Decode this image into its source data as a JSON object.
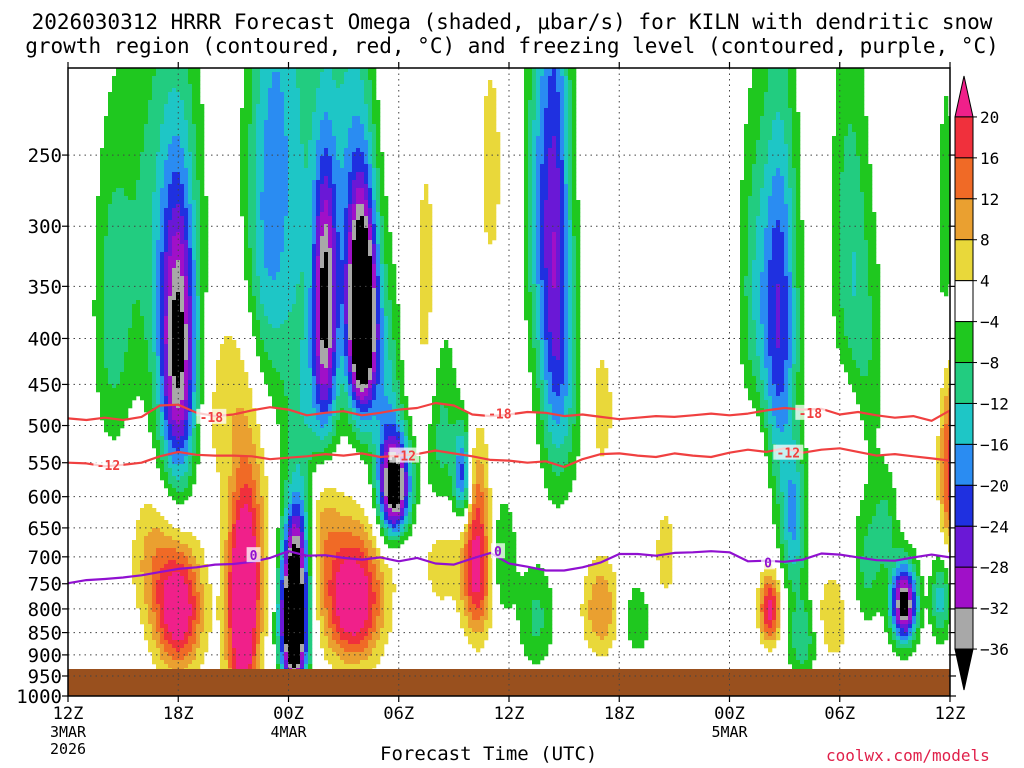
{
  "chart_data": {
    "type": "heatmap",
    "title_line1": "2026030312 HRRR Forecast Omega (shaded, μbar/s) for KILN with dendritic snow",
    "title_line2": "growth region (contoured, red, °C) and freezing level (contoured, purple, °C)",
    "xlabel": "Forecast Time (UTC)",
    "ylabel": "",
    "y_axis": {
      "scale": "log-pressure",
      "ylim_hpa": [
        1000,
        200
      ],
      "ticks": [
        250,
        300,
        350,
        400,
        450,
        500,
        550,
        600,
        650,
        700,
        750,
        800,
        850,
        900,
        950,
        1000
      ]
    },
    "x_axis": {
      "xlim_hours": [
        0,
        48
      ],
      "ticks": [
        {
          "hour": 0,
          "label": "12Z",
          "sub1": "3MAR",
          "sub2": "2026"
        },
        {
          "hour": 6,
          "label": "18Z",
          "sub1": "",
          "sub2": ""
        },
        {
          "hour": 12,
          "label": "00Z",
          "sub1": "4MAR",
          "sub2": ""
        },
        {
          "hour": 18,
          "label": "06Z",
          "sub1": "",
          "sub2": ""
        },
        {
          "hour": 24,
          "label": "12Z",
          "sub1": "",
          "sub2": ""
        },
        {
          "hour": 30,
          "label": "18Z",
          "sub1": "",
          "sub2": ""
        },
        {
          "hour": 36,
          "label": "00Z",
          "sub1": "5MAR",
          "sub2": ""
        },
        {
          "hour": 42,
          "label": "06Z",
          "sub1": "",
          "sub2": ""
        },
        {
          "hour": 48,
          "label": "12Z",
          "sub1": "",
          "sub2": ""
        }
      ]
    },
    "grid": true,
    "colorbar": {
      "labels": [
        "20",
        "16",
        "12",
        "8",
        "4",
        "−4",
        "−8",
        "−12",
        "−16",
        "−20",
        "−24",
        "−28",
        "−32",
        "−36"
      ],
      "bins": [
        {
          "min": 20,
          "max": 24,
          "color": "#f0208a"
        },
        {
          "min": 16,
          "max": 20,
          "color": "#f0303c"
        },
        {
          "min": 12,
          "max": 16,
          "color": "#f06a26"
        },
        {
          "min": 8,
          "max": 12,
          "color": "#eaa030"
        },
        {
          "min": 4,
          "max": 8,
          "color": "#e9d83a"
        },
        {
          "min": -4,
          "max": 4,
          "color": "#ffffff"
        },
        {
          "min": -8,
          "max": -4,
          "color": "#1fc81f"
        },
        {
          "min": -12,
          "max": -8,
          "color": "#22cc80"
        },
        {
          "min": -16,
          "max": -12,
          "color": "#1ec6c6"
        },
        {
          "min": -20,
          "max": -16,
          "color": "#2a8cf2"
        },
        {
          "min": -24,
          "max": -20,
          "color": "#1f30e0"
        },
        {
          "min": -28,
          "max": -24,
          "color": "#6a18d6"
        },
        {
          "min": -32,
          "max": -28,
          "color": "#a010c8"
        },
        {
          "min": -36,
          "max": -32,
          "color": "#a8a8a8"
        },
        {
          "min": -40,
          "max": -36,
          "color": "#000000"
        }
      ]
    },
    "omega_features": [
      {
        "t": 6.0,
        "p": 420,
        "amp": -34,
        "st": 0.7,
        "sp": 110
      },
      {
        "t": 5.0,
        "p": 300,
        "amp": -10,
        "st": 1.6,
        "sp": 120
      },
      {
        "t": 2.4,
        "p": 380,
        "amp": -9,
        "st": 0.7,
        "sp": 100
      },
      {
        "t": 9.5,
        "p": 560,
        "amp": -9,
        "st": 0.7,
        "sp": 90
      },
      {
        "t": 10.5,
        "p": 330,
        "amp": -7,
        "st": 0.8,
        "sp": 90
      },
      {
        "t": 11.2,
        "p": 240,
        "amp": -12,
        "st": 1.0,
        "sp": 140
      },
      {
        "t": 13.0,
        "p": 260,
        "amp": -8,
        "st": 1.3,
        "sp": 120
      },
      {
        "t": 12.3,
        "p": 820,
        "amp": -60,
        "st": 0.5,
        "sp": 110
      },
      {
        "t": 12.6,
        "p": 660,
        "amp": -12,
        "st": 0.5,
        "sp": 60
      },
      {
        "t": 12.8,
        "p": 500,
        "amp": -9,
        "st": 0.7,
        "sp": 90
      },
      {
        "t": 14.0,
        "p": 360,
        "amp": -30,
        "st": 0.45,
        "sp": 80
      },
      {
        "t": 14.0,
        "p": 480,
        "amp": -10,
        "st": 0.6,
        "sp": 80
      },
      {
        "t": 15.5,
        "p": 260,
        "amp": -12,
        "st": 0.9,
        "sp": 100
      },
      {
        "t": 16.0,
        "p": 380,
        "amp": -55,
        "st": 0.55,
        "sp": 70
      },
      {
        "t": 17.3,
        "p": 460,
        "amp": -12,
        "st": 0.6,
        "sp": 90
      },
      {
        "t": 17.8,
        "p": 590,
        "amp": -45,
        "st": 0.6,
        "sp": 55
      },
      {
        "t": 20.3,
        "p": 520,
        "amp": -10,
        "st": 0.7,
        "sp": 100
      },
      {
        "t": 21.5,
        "p": 570,
        "amp": -26,
        "st": 0.35,
        "sp": 50
      },
      {
        "t": 23.5,
        "p": 700,
        "amp": -10,
        "st": 0.6,
        "sp": 80
      },
      {
        "t": 25.5,
        "p": 280,
        "amp": -10,
        "st": 0.5,
        "sp": 100
      },
      {
        "t": 26.5,
        "p": 300,
        "amp": -24,
        "st": 0.6,
        "sp": 140
      },
      {
        "t": 27.0,
        "p": 450,
        "amp": -9,
        "st": 0.8,
        "sp": 100
      },
      {
        "t": 25.5,
        "p": 820,
        "amp": -9,
        "st": 0.7,
        "sp": 80
      },
      {
        "t": 31.0,
        "p": 820,
        "amp": -8,
        "st": 0.6,
        "sp": 60
      },
      {
        "t": 37.3,
        "p": 350,
        "amp": -9,
        "st": 0.6,
        "sp": 100
      },
      {
        "t": 38.7,
        "p": 380,
        "amp": -24,
        "st": 0.7,
        "sp": 130
      },
      {
        "t": 39.5,
        "p": 640,
        "amp": -16,
        "st": 0.5,
        "sp": 80
      },
      {
        "t": 40.0,
        "p": 860,
        "amp": -12,
        "st": 0.6,
        "sp": 70
      },
      {
        "t": 42.5,
        "p": 300,
        "amp": -9,
        "st": 0.7,
        "sp": 100
      },
      {
        "t": 43.3,
        "p": 420,
        "amp": -8,
        "st": 0.8,
        "sp": 100
      },
      {
        "t": 43.5,
        "p": 720,
        "amp": -9,
        "st": 0.6,
        "sp": 80
      },
      {
        "t": 45.5,
        "p": 790,
        "amp": -40,
        "st": 0.5,
        "sp": 55
      },
      {
        "t": 44.5,
        "p": 640,
        "amp": -8,
        "st": 0.5,
        "sp": 60
      },
      {
        "t": 47.5,
        "p": 780,
        "amp": -14,
        "st": 0.4,
        "sp": 60
      },
      {
        "t": 47.8,
        "p": 300,
        "amp": -7,
        "st": 0.4,
        "sp": 80
      },
      {
        "t": 6.0,
        "p": 800,
        "amp": 26,
        "st": 0.9,
        "sp": 90
      },
      {
        "t": 4.5,
        "p": 700,
        "amp": 8,
        "st": 0.8,
        "sp": 80
      },
      {
        "t": 9.5,
        "p": 790,
        "amp": 30,
        "st": 0.6,
        "sp": 180
      },
      {
        "t": 8.5,
        "p": 480,
        "amp": 7,
        "st": 0.9,
        "sp": 90
      },
      {
        "t": 10.0,
        "p": 620,
        "amp": 10,
        "st": 0.7,
        "sp": 150
      },
      {
        "t": 15.5,
        "p": 780,
        "amp": 28,
        "st": 1.1,
        "sp": 90
      },
      {
        "t": 13.8,
        "p": 620,
        "amp": 10,
        "st": 0.7,
        "sp": 80
      },
      {
        "t": 18.0,
        "p": 650,
        "amp": 6,
        "st": 0.6,
        "sp": 60
      },
      {
        "t": 19.5,
        "p": 370,
        "amp": 7,
        "st": 0.5,
        "sp": 100
      },
      {
        "t": 22.3,
        "p": 720,
        "amp": 24,
        "st": 0.6,
        "sp": 90
      },
      {
        "t": 22.0,
        "p": 570,
        "amp": 8,
        "st": 0.6,
        "sp": 60
      },
      {
        "t": 20.3,
        "p": 700,
        "amp": 8,
        "st": 0.7,
        "sp": 70
      },
      {
        "t": 29.0,
        "p": 800,
        "amp": 12,
        "st": 0.7,
        "sp": 70
      },
      {
        "t": 29.0,
        "p": 480,
        "amp": 6,
        "st": 0.6,
        "sp": 70
      },
      {
        "t": 32.5,
        "p": 700,
        "amp": 5,
        "st": 0.7,
        "sp": 100
      },
      {
        "t": 37.5,
        "p": 550,
        "amp": 6,
        "st": 0.5,
        "sp": 60
      },
      {
        "t": 38.2,
        "p": 800,
        "amp": 22,
        "st": 0.4,
        "sp": 50
      },
      {
        "t": 41.5,
        "p": 820,
        "amp": 8,
        "st": 0.7,
        "sp": 70
      },
      {
        "t": 42.5,
        "p": 500,
        "amp": 6,
        "st": 0.6,
        "sp": 60
      },
      {
        "t": 48.0,
        "p": 560,
        "amp": 18,
        "st": 0.4,
        "sp": 90
      },
      {
        "t": 17.7,
        "p": 180,
        "amp": 5,
        "st": 0.5,
        "sp": 40
      },
      {
        "t": 23.0,
        "p": 260,
        "amp": 6,
        "st": 0.5,
        "sp": 60
      }
    ],
    "contours": [
      {
        "label": "-18",
        "color": "#f04040",
        "points": [
          [
            0,
            491
          ],
          [
            1,
            493
          ],
          [
            2,
            490
          ],
          [
            3,
            493
          ],
          [
            4,
            489
          ],
          [
            5,
            475
          ],
          [
            6,
            474
          ],
          [
            7,
            484
          ],
          [
            8,
            488
          ],
          [
            9,
            486
          ],
          [
            10,
            481
          ],
          [
            11,
            477
          ],
          [
            12,
            480
          ],
          [
            13,
            487
          ],
          [
            14,
            484
          ],
          [
            15,
            482
          ],
          [
            16,
            487
          ],
          [
            17,
            484
          ],
          [
            18,
            480
          ],
          [
            19,
            478
          ],
          [
            20,
            472
          ],
          [
            21,
            475
          ],
          [
            22,
            486
          ],
          [
            23,
            488
          ],
          [
            24,
            486
          ],
          [
            25,
            483
          ],
          [
            26,
            484
          ],
          [
            27,
            488
          ],
          [
            28,
            486
          ],
          [
            29,
            489
          ],
          [
            30,
            492
          ],
          [
            31,
            490
          ],
          [
            32,
            488
          ],
          [
            33,
            489
          ],
          [
            34,
            487
          ],
          [
            35,
            485
          ],
          [
            36,
            487
          ],
          [
            37,
            485
          ],
          [
            38,
            481
          ],
          [
            39,
            478
          ],
          [
            40,
            480
          ],
          [
            41,
            479
          ],
          [
            42,
            486
          ],
          [
            43,
            483
          ],
          [
            44,
            487
          ],
          [
            45,
            490
          ],
          [
            46,
            488
          ],
          [
            47,
            494
          ],
          [
            48,
            481
          ]
        ],
        "label_positions": [
          [
            7.8,
            489
          ],
          [
            23.5,
            485
          ],
          [
            40.4,
            484
          ]
        ]
      },
      {
        "label": "-12",
        "color": "#f04040",
        "points": [
          [
            0,
            550
          ],
          [
            1,
            551
          ],
          [
            2,
            555
          ],
          [
            3,
            553
          ],
          [
            4,
            550
          ],
          [
            5,
            541
          ],
          [
            6,
            535
          ],
          [
            7,
            539
          ],
          [
            8,
            540
          ],
          [
            9,
            540
          ],
          [
            10,
            541
          ],
          [
            11,
            545
          ],
          [
            12,
            543
          ],
          [
            13,
            541
          ],
          [
            14,
            538
          ],
          [
            15,
            540
          ],
          [
            16,
            537
          ],
          [
            17,
            542
          ],
          [
            18,
            540
          ],
          [
            19,
            538
          ],
          [
            20,
            533
          ],
          [
            21,
            537
          ],
          [
            22,
            541
          ],
          [
            23,
            546
          ],
          [
            24,
            547
          ],
          [
            25,
            550
          ],
          [
            26,
            548
          ],
          [
            27,
            556
          ],
          [
            28,
            545
          ],
          [
            29,
            538
          ],
          [
            30,
            537
          ],
          [
            31,
            540
          ],
          [
            32,
            542
          ],
          [
            33,
            537
          ],
          [
            34,
            540
          ],
          [
            35,
            542
          ],
          [
            36,
            536
          ],
          [
            37,
            532
          ],
          [
            38,
            535
          ],
          [
            39,
            530
          ],
          [
            40,
            536
          ],
          [
            41,
            532
          ],
          [
            42,
            530
          ],
          [
            43,
            535
          ],
          [
            44,
            540
          ],
          [
            45,
            538
          ],
          [
            46,
            541
          ],
          [
            47,
            544
          ],
          [
            48,
            547
          ]
        ],
        "label_positions": [
          [
            2.2,
            553
          ],
          [
            18.3,
            540
          ],
          [
            39.2,
            536
          ]
        ]
      },
      {
        "label": "0",
        "color": "#9010d0",
        "points": [
          [
            0,
            749
          ],
          [
            1,
            743
          ],
          [
            2,
            741
          ],
          [
            3,
            738
          ],
          [
            4,
            734
          ],
          [
            5,
            728
          ],
          [
            6,
            722
          ],
          [
            7,
            719
          ],
          [
            8,
            714
          ],
          [
            9,
            713
          ],
          [
            10,
            709
          ],
          [
            11,
            702
          ],
          [
            12,
            690
          ],
          [
            13,
            698
          ],
          [
            14,
            697
          ],
          [
            15,
            702
          ],
          [
            16,
            705
          ],
          [
            17,
            701
          ],
          [
            18,
            708
          ],
          [
            19,
            702
          ],
          [
            20,
            712
          ],
          [
            21,
            714
          ],
          [
            22,
            703
          ],
          [
            23,
            693
          ],
          [
            24,
            712
          ],
          [
            25,
            718
          ],
          [
            26,
            725
          ],
          [
            27,
            725
          ],
          [
            28,
            719
          ],
          [
            29,
            710
          ],
          [
            30,
            695
          ],
          [
            31,
            695
          ],
          [
            32,
            698
          ],
          [
            33,
            693
          ],
          [
            34,
            692
          ],
          [
            35,
            690
          ],
          [
            36,
            692
          ],
          [
            37,
            708
          ],
          [
            38,
            707
          ],
          [
            39,
            709
          ],
          [
            40,
            705
          ],
          [
            41,
            694
          ],
          [
            42,
            696
          ],
          [
            43,
            701
          ],
          [
            44,
            706
          ],
          [
            45,
            707
          ],
          [
            46,
            701
          ],
          [
            47,
            696
          ],
          [
            48,
            701
          ]
        ],
        "label_positions": [
          [
            10.1,
            697
          ],
          [
            23.4,
            690
          ],
          [
            38.1,
            710
          ]
        ]
      }
    ],
    "credit": "coolwx.com/models"
  }
}
